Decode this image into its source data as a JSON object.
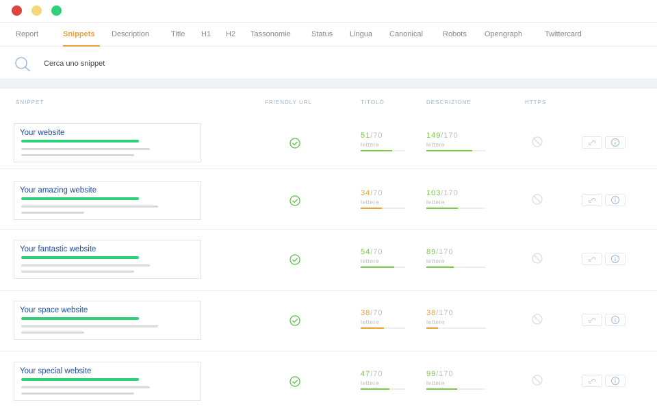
{
  "window": {
    "buttons": [
      {
        "color": "#e0443e"
      },
      {
        "color": "#f5d77c"
      },
      {
        "color": "#2fd07a"
      }
    ]
  },
  "tabs": {
    "items": [
      "Report",
      "Snippets",
      "Description",
      "Title",
      "H1",
      "H2",
      "Tassonomie",
      "Status",
      "Lingua",
      "Canonical",
      "Robots",
      "Opengraph",
      "Twittercard"
    ],
    "active": 1
  },
  "search": {
    "placeholder": "Cerca uno snippet"
  },
  "table": {
    "headers": [
      "SNIPPET",
      "FRIENDLY URL",
      "TITOLO",
      "DESCRIZIONE",
      "HTTPS"
    ],
    "rows": [
      {
        "snippet": "Your website",
        "title": {
          "value": 51,
          "limit": "/70",
          "unit": "lettere",
          "color": "#7ac943"
        },
        "description": {
          "value": 149,
          "limit": "/170",
          "unit": "lettere",
          "color": "#7ac943"
        }
      },
      {
        "snippet": "Your amazing website",
        "title": {
          "value": 34,
          "limit": "/70",
          "unit": "lettere",
          "color": "#f0a030"
        },
        "description": {
          "value": 103,
          "limit": "/170",
          "unit": "lettere",
          "color": "#7ac943"
        }
      },
      {
        "snippet": "Your fantastic website",
        "title": {
          "value": 54,
          "limit": "/70",
          "unit": "lettere",
          "color": "#7ac943"
        },
        "description": {
          "value": 89,
          "limit": "/170",
          "unit": "lettere",
          "color": "#7ac943"
        }
      },
      {
        "snippet": "Your space website",
        "title": {
          "value": 38,
          "limit": "/70",
          "unit": "lettere",
          "color": "#f0a030"
        },
        "description": {
          "value": 38,
          "limit": "/170",
          "unit": "lettere",
          "color": "#f0a030"
        }
      },
      {
        "snippet": "Your special website",
        "title": {
          "value": 47,
          "limit": "/70",
          "unit": "lettere",
          "color": "#7ac943"
        },
        "description": {
          "value": 99,
          "limit": "/170",
          "unit": "lettere",
          "color": "#7ac943"
        }
      }
    ]
  }
}
